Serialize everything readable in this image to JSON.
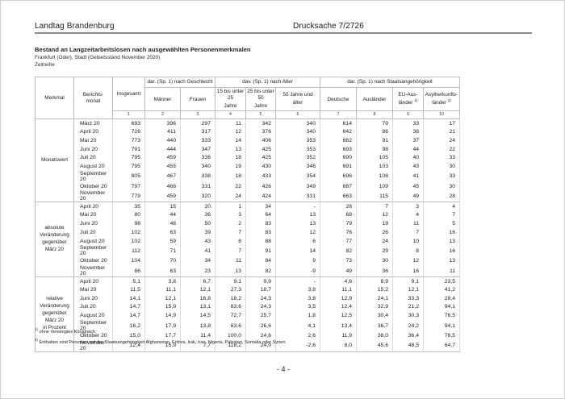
{
  "page": {
    "header_left": "Landtag Brandenburg",
    "header_right": "Drucksache 7/2726",
    "title": "Bestand an Langzeitarbeitslosen nach ausgewählten Personenmerkmalen",
    "subtitle": "Frankfurt (Oder), Stadt (Gebietsstand November 2020)",
    "subtitle2": "Zeitreihe",
    "page_number": "- 4 -"
  },
  "table": {
    "head": {
      "merkmal": "Merkmal",
      "monat": "Berichts-\nmonat"
    },
    "col_groups": [
      {
        "label": "dar. (Sp. 1) nach Geschlecht",
        "span": 2
      },
      {
        "label": "dav. (Sp. 1) nach Alter",
        "span": 3
      },
      {
        "label": "dar. (Sp. 1) nach Staatsangehörigkeit",
        "span": 4
      }
    ],
    "columns": [
      {
        "label": "Insgesamt",
        "sup": ""
      },
      {
        "label": "Männer",
        "sup": ""
      },
      {
        "label": "Frauen",
        "sup": ""
      },
      {
        "label": "15 bis unter 25\nJahre",
        "sup": ""
      },
      {
        "label": "25 bis unter 50\nJahre",
        "sup": ""
      },
      {
        "label": "50 Jahre und\nälter",
        "sup": ""
      },
      {
        "label": "Deutsche",
        "sup": ""
      },
      {
        "label": "Ausländer",
        "sup": ""
      },
      {
        "label": "EU-Aus-\nländer ",
        "sup": "1)"
      },
      {
        "label": "Asylherkunfts-\nländer ",
        "sup": "2)"
      }
    ],
    "col_numbers": [
      "1",
      "2",
      "3",
      "4",
      "5",
      "6",
      "7",
      "8",
      "9",
      "10"
    ],
    "groups": [
      {
        "label": "Monatswert",
        "rows": [
          {
            "month": "März 20",
            "values": [
              "693",
              "396",
              "297",
              "11",
              "342",
              "340",
              "614",
              "79",
              "33",
              "17"
            ]
          },
          {
            "month": "April 20",
            "values": [
              "728",
              "411",
              "317",
              "12",
              "376",
              "340",
              "642",
              "86",
              "36",
              "21"
            ]
          },
          {
            "month": "Mai 20",
            "values": [
              "773",
              "440",
              "333",
              "14",
              "406",
              "353",
              "682",
              "91",
              "37",
              "24"
            ]
          },
          {
            "month": "Juni 20",
            "values": [
              "791",
              "444",
              "347",
              "13",
              "425",
              "353",
              "693",
              "98",
              "44",
              "22"
            ]
          },
          {
            "month": "Juli 20",
            "values": [
              "795",
              "459",
              "336",
              "18",
              "425",
              "352",
              "690",
              "105",
              "40",
              "33"
            ]
          },
          {
            "month": "August 20",
            "values": [
              "795",
              "455",
              "340",
              "19",
              "430",
              "346",
              "691",
              "103",
              "43",
              "30"
            ]
          },
          {
            "month": "September 20",
            "values": [
              "805",
              "467",
              "338",
              "18",
              "433",
              "354",
              "696",
              "108",
              "41",
              "33"
            ]
          },
          {
            "month": "Oktober 20",
            "values": [
              "797",
              "466",
              "331",
              "22",
              "426",
              "349",
              "687",
              "109",
              "45",
              "30"
            ]
          },
          {
            "month": "November 20",
            "values": [
              "779",
              "459",
              "320",
              "24",
              "424",
              "331",
              "663",
              "115",
              "49",
              "28"
            ]
          }
        ]
      },
      {
        "label": "absolute\nVeränderung\ngegenüber\nMärz 20",
        "rows": [
          {
            "month": "April 20",
            "values": [
              "35",
              "15",
              "20",
              "1",
              "34",
              "-",
              "28",
              "7",
              "3",
              "4"
            ]
          },
          {
            "month": "Mai 20",
            "values": [
              "80",
              "44",
              "36",
              "3",
              "64",
              "13",
              "68",
              "12",
              "4",
              "7"
            ]
          },
          {
            "month": "Juni 20",
            "values": [
              "98",
              "48",
              "50",
              "2",
              "83",
              "13",
              "79",
              "19",
              "11",
              "5"
            ]
          },
          {
            "month": "Juli 20",
            "values": [
              "102",
              "63",
              "39",
              "7",
              "83",
              "12",
              "76",
              "26",
              "7",
              "16"
            ]
          },
          {
            "month": "August 20",
            "values": [
              "102",
              "59",
              "43",
              "8",
              "88",
              "6",
              "77",
              "24",
              "10",
              "13"
            ]
          },
          {
            "month": "September 20",
            "values": [
              "112",
              "71",
              "41",
              "7",
              "91",
              "14",
              "82",
              "29",
              "8",
              "16"
            ]
          },
          {
            "month": "Oktober 20",
            "values": [
              "104",
              "70",
              "34",
              "11",
              "84",
              "9",
              "73",
              "30",
              "12",
              "13"
            ]
          },
          {
            "month": "November 20",
            "values": [
              "86",
              "63",
              "23",
              "13",
              "82",
              "-9",
              "49",
              "36",
              "16",
              "11"
            ]
          }
        ]
      },
      {
        "label": "relative\nVeränderung\ngegenüber\nMärz 20\nin Prozent",
        "rows": [
          {
            "month": "April 20",
            "values": [
              "5,1",
              "3,8",
              "6,7",
              "9,1",
              "9,9",
              "-",
              "4,6",
              "8,9",
              "9,1",
              "23,5"
            ]
          },
          {
            "month": "Mai 20",
            "values": [
              "11,5",
              "11,1",
              "12,1",
              "27,3",
              "18,7",
              "3,8",
              "11,1",
              "15,2",
              "12,1",
              "41,2"
            ]
          },
          {
            "month": "Juni 20",
            "values": [
              "14,1",
              "12,1",
              "16,8",
              "18,2",
              "24,3",
              "3,8",
              "12,9",
              "24,1",
              "33,3",
              "29,4"
            ]
          },
          {
            "month": "Juli 20",
            "values": [
              "14,7",
              "15,9",
              "13,1",
              "63,6",
              "24,3",
              "3,5",
              "12,4",
              "32,9",
              "21,2",
              "94,1"
            ]
          },
          {
            "month": "August 20",
            "values": [
              "14,7",
              "14,9",
              "14,5",
              "72,7",
              "25,7",
              "1,8",
              "12,5",
              "30,4",
              "30,3",
              "76,5"
            ]
          },
          {
            "month": "September 20",
            "values": [
              "16,2",
              "17,9",
              "13,8",
              "63,6",
              "26,6",
              "4,1",
              "13,4",
              "36,7",
              "24,2",
              "94,1"
            ]
          },
          {
            "month": "Oktober 20",
            "values": [
              "15,0",
              "17,7",
              "11,4",
              "100,0",
              "24,6",
              "2,6",
              "11,9",
              "38,0",
              "36,4",
              "76,5"
            ]
          },
          {
            "month": "November 20",
            "values": [
              "12,4",
              "15,9",
              "7,7",
              "118,2",
              "24,0",
              "-2,6",
              "8,0",
              "45,6",
              "48,5",
              "64,7"
            ]
          }
        ]
      }
    ]
  },
  "footnotes": [
    {
      "marker": "1)",
      "text": "ohne Vereinigtes Königreich"
    },
    {
      "marker": "2)",
      "text": "Enthalten sind Personen mit der Staatsangehörigkeit Afghanistan, Eritrea, Irak, Iran, Nigeria, Pakistan, Somalia oder Syrien."
    }
  ]
}
